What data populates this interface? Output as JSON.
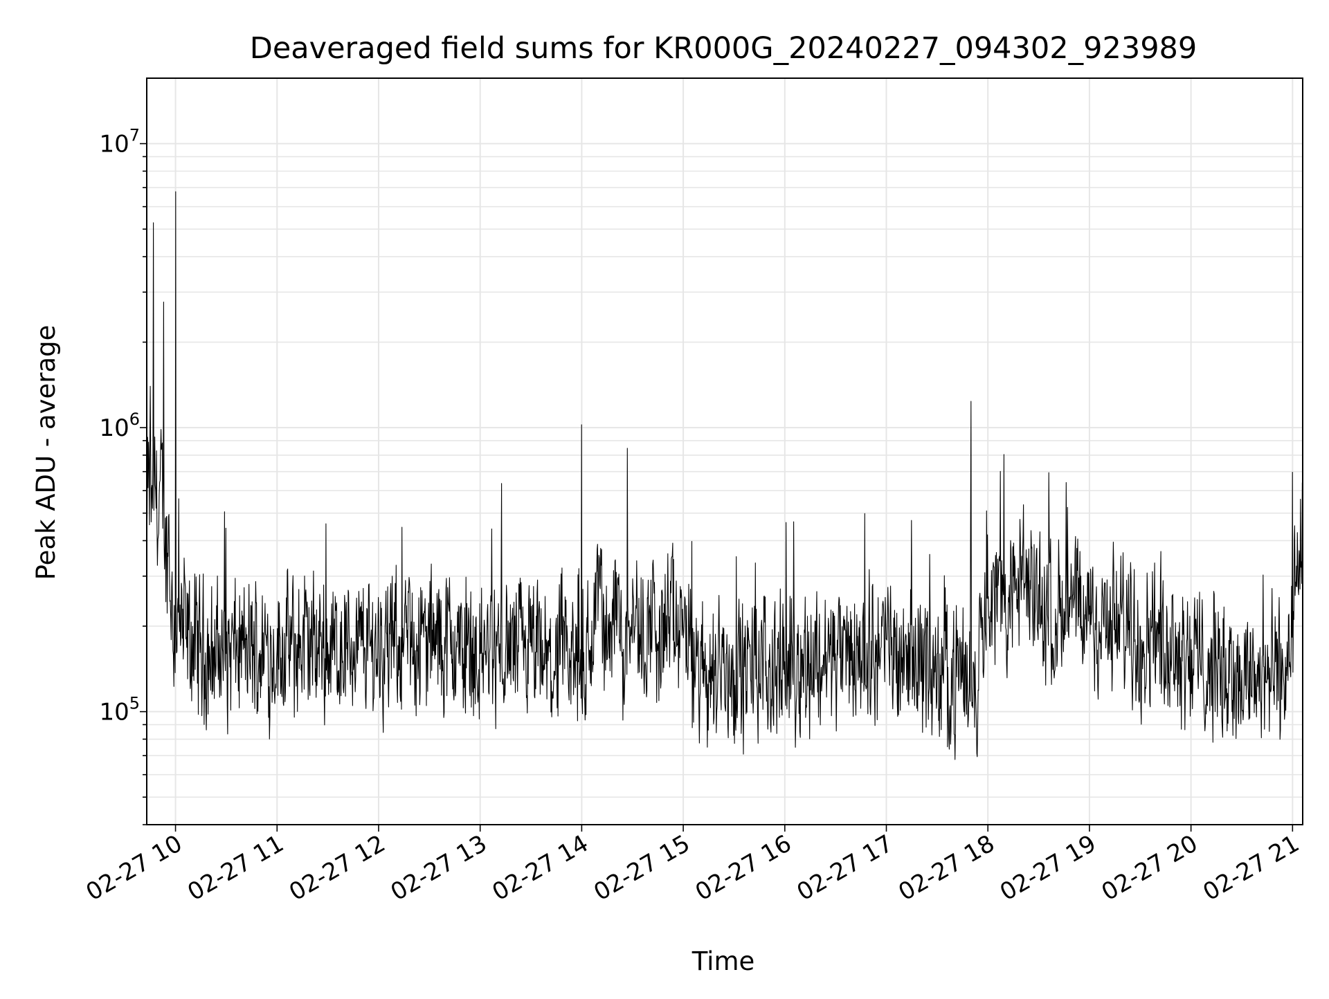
{
  "chart_data": {
    "type": "line",
    "title": "Deaveraged field sums for KR000G_20240227_094302_923989",
    "xlabel": "Time",
    "ylabel": "Peak ADU - average",
    "x_axis_type": "time",
    "xlim": [
      "2024-02-27 09:43",
      "2024-02-27 21:06"
    ],
    "ylim": [
      40000,
      17000000
    ],
    "y_scale": "log",
    "grid": true,
    "legend": "none",
    "line_color": "#000000",
    "grid_color": "#e6e6e6",
    "x_tick_labels": [
      "02-27 10",
      "02-27 11",
      "02-27 12",
      "02-27 13",
      "02-27 14",
      "02-27 15",
      "02-27 16",
      "02-27 17",
      "02-27 18",
      "02-27 19",
      "02-27 20",
      "02-27 21"
    ],
    "y_tick_labels": [
      {
        "base": "10",
        "exp": "5",
        "value": 100000
      },
      {
        "base": "10",
        "exp": "6",
        "value": 1000000
      },
      {
        "base": "10",
        "exp": "7",
        "value": 10000000
      }
    ],
    "series": [
      {
        "x": [
          "2024-02-27 09:43",
          "2024-02-27 09:45",
          "2024-02-27 09:47",
          "2024-02-27 09:50",
          "2024-02-27 09:53",
          "2024-02-27 09:56",
          "2024-02-27 10:00",
          "2024-02-27 10:02",
          "2024-02-27 10:05",
          "2024-02-27 10:10",
          "2024-02-27 10:15",
          "2024-02-27 10:20",
          "2024-02-27 10:30",
          "2024-02-27 10:45",
          "2024-02-27 11:00",
          "2024-02-27 11:30",
          "2024-02-27 11:55",
          "2024-02-27 12:15",
          "2024-02-27 12:30",
          "2024-02-27 12:45",
          "2024-02-27 13:00",
          "2024-02-27 13:30",
          "2024-02-27 13:53",
          "2024-02-27 14:00",
          "2024-02-27 14:15",
          "2024-02-27 14:27",
          "2024-02-27 14:45",
          "2024-02-27 15:05",
          "2024-02-27 15:15",
          "2024-02-27 15:30",
          "2024-02-27 16:00",
          "2024-02-27 16:30",
          "2024-02-27 17:00",
          "2024-02-27 17:30",
          "2024-02-27 17:44",
          "2024-02-27 17:50",
          "2024-02-27 17:55",
          "2024-02-27 18:00",
          "2024-02-27 18:15",
          "2024-02-27 18:30",
          "2024-02-27 18:45",
          "2024-02-27 19:00",
          "2024-02-27 19:30",
          "2024-02-27 20:00",
          "2024-02-27 20:15",
          "2024-02-27 20:30",
          "2024-02-27 20:45",
          "2024-02-27 21:00",
          "2024-02-27 21:06"
        ],
        "y": [
          400000,
          1300000,
          5500000,
          400000,
          2800000,
          450000,
          7500000,
          500000,
          350000,
          200000,
          180000,
          170000,
          160000,
          170000,
          165000,
          175000,
          170000,
          180000,
          175000,
          200000,
          160000,
          170000,
          140000,
          1050000,
          150000,
          850000,
          170000,
          400000,
          140000,
          140000,
          150000,
          160000,
          180000,
          160000,
          120000,
          1250000,
          250000,
          250000,
          300000,
          280000,
          230000,
          220000,
          200000,
          180000,
          150000,
          140000,
          130000,
          700000,
          600000
        ]
      }
    ]
  }
}
